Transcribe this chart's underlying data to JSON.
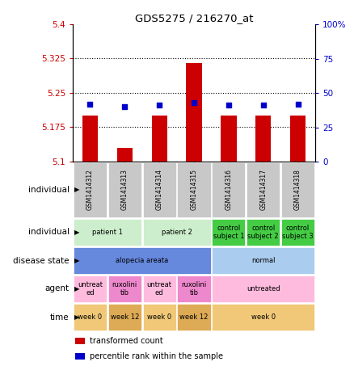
{
  "title": "GDS5275 / 216270_at",
  "samples": [
    "GSM1414312",
    "GSM1414313",
    "GSM1414314",
    "GSM1414315",
    "GSM1414316",
    "GSM1414317",
    "GSM1414318"
  ],
  "bar_values": [
    5.2,
    5.13,
    5.2,
    5.315,
    5.2,
    5.2,
    5.2
  ],
  "bar_bottom": 5.1,
  "blue_values": [
    42,
    40,
    41,
    43,
    41,
    41,
    42
  ],
  "ylim": [
    5.1,
    5.4
  ],
  "y2lim": [
    0,
    100
  ],
  "yticks": [
    5.1,
    5.175,
    5.25,
    5.325,
    5.4
  ],
  "y2ticks": [
    0,
    25,
    50,
    75,
    100
  ],
  "bar_color": "#cc0000",
  "blue_color": "#0000cc",
  "bg_color": "#ffffff",
  "plot_bg": "#ffffff",
  "sample_box_color": "#bbbbbb",
  "rows": [
    {
      "label": "individual",
      "cells": [
        {
          "text": "patient 1",
          "span": 2,
          "color": "#cceecc"
        },
        {
          "text": "patient 2",
          "span": 2,
          "color": "#cceecc"
        },
        {
          "text": "control\nsubject 1",
          "span": 1,
          "color": "#44cc44"
        },
        {
          "text": "control\nsubject 2",
          "span": 1,
          "color": "#44cc44"
        },
        {
          "text": "control\nsubject 3",
          "span": 1,
          "color": "#44cc44"
        }
      ]
    },
    {
      "label": "disease state",
      "cells": [
        {
          "text": "alopecia areata",
          "span": 4,
          "color": "#6688dd"
        },
        {
          "text": "normal",
          "span": 3,
          "color": "#aaccee"
        }
      ]
    },
    {
      "label": "agent",
      "cells": [
        {
          "text": "untreat\ned",
          "span": 1,
          "color": "#ffbbdd"
        },
        {
          "text": "ruxolini\ntib",
          "span": 1,
          "color": "#ee88cc"
        },
        {
          "text": "untreat\ned",
          "span": 1,
          "color": "#ffbbdd"
        },
        {
          "text": "ruxolini\ntib",
          "span": 1,
          "color": "#ee88cc"
        },
        {
          "text": "untreated",
          "span": 3,
          "color": "#ffbbdd"
        }
      ]
    },
    {
      "label": "time",
      "cells": [
        {
          "text": "week 0",
          "span": 1,
          "color": "#f0c878"
        },
        {
          "text": "week 12",
          "span": 1,
          "color": "#ddaa55"
        },
        {
          "text": "week 0",
          "span": 1,
          "color": "#f0c878"
        },
        {
          "text": "week 12",
          "span": 1,
          "color": "#ddaa55"
        },
        {
          "text": "week 0",
          "span": 3,
          "color": "#f0c878"
        }
      ]
    }
  ],
  "legend_items": [
    {
      "color": "#cc0000",
      "label": "transformed count"
    },
    {
      "color": "#0000cc",
      "label": "percentile rank within the sample"
    }
  ]
}
